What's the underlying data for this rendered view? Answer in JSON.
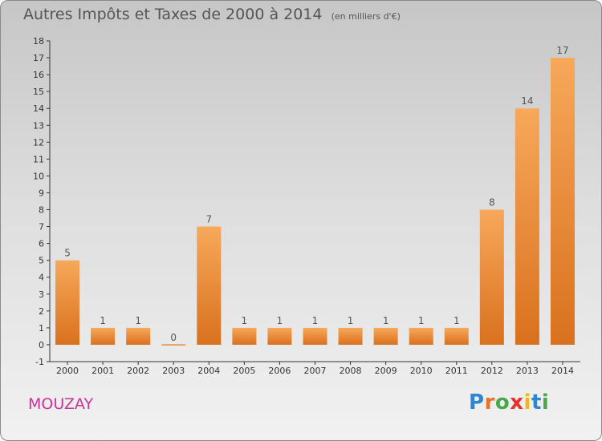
{
  "title": {
    "main": "Autres Impôts et Taxes de 2000 à 2014",
    "unit": "(en milliers d'€)"
  },
  "commune": "MOUZAY",
  "logo": {
    "text": "Proxiti",
    "colors": [
      "#2e86d1",
      "#e8732a",
      "#4aa84a",
      "#e83030",
      "#f2b619",
      "#2e86d1",
      "#4aa84a"
    ]
  },
  "colors": {
    "bar_light": "#f7a85a",
    "bar_dark": "#d9711e",
    "axis": "#333333",
    "commune": "#cc3399",
    "text": "#555555"
  },
  "chart_data": {
    "type": "bar",
    "categories": [
      "2000",
      "2001",
      "2002",
      "2003",
      "2004",
      "2005",
      "2006",
      "2007",
      "2008",
      "2009",
      "2010",
      "2011",
      "2012",
      "2013",
      "2014"
    ],
    "values": [
      5,
      1,
      1,
      0,
      7,
      1,
      1,
      1,
      1,
      1,
      1,
      1,
      8,
      14,
      17
    ],
    "data_labels": [
      "5",
      "1",
      "1",
      "0",
      "7",
      "1",
      "1",
      "1",
      "1",
      "1",
      "1",
      "1",
      "8",
      "14",
      "17"
    ],
    "ylim": [
      -1,
      18
    ],
    "yticks": [
      -1,
      0,
      1,
      2,
      3,
      4,
      5,
      6,
      7,
      8,
      9,
      10,
      11,
      12,
      13,
      14,
      15,
      16,
      17,
      18
    ],
    "ytick_labels": [
      "-1",
      "0",
      "1",
      "2",
      "3",
      "4",
      "5",
      "6",
      "7",
      "8",
      "9",
      "10",
      "11",
      "12",
      "13",
      "14",
      "15",
      "16",
      "17",
      "18"
    ],
    "grid": false,
    "legend": "none"
  }
}
